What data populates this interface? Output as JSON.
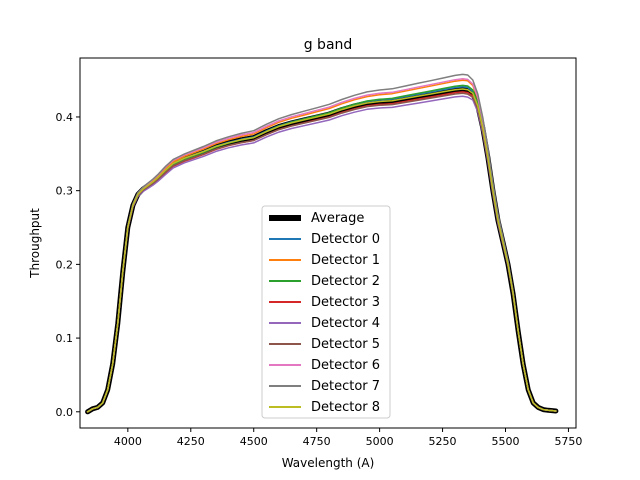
{
  "chart_data": {
    "type": "line",
    "title": "g band",
    "xlabel": "Wavelength (A)",
    "ylabel": "Throughput",
    "xlim": [
      3810,
      5780
    ],
    "ylim": [
      -0.022,
      0.48
    ],
    "xticks": [
      4000,
      4250,
      4500,
      4750,
      5000,
      5250,
      5500,
      5750
    ],
    "yticks": [
      0.0,
      0.1,
      0.2,
      0.3,
      0.4
    ],
    "ytick_labels": [
      "0.0",
      "0.1",
      "0.2",
      "0.3",
      "0.4"
    ],
    "grid": false,
    "legend": {
      "position": "lower center"
    },
    "x": [
      3840,
      3860,
      3880,
      3900,
      3920,
      3940,
      3960,
      3980,
      4000,
      4020,
      4040,
      4060,
      4080,
      4100,
      4120,
      4150,
      4180,
      4200,
      4225,
      4250,
      4300,
      4350,
      4400,
      4450,
      4500,
      4550,
      4600,
      4650,
      4700,
      4750,
      4800,
      4850,
      4900,
      4950,
      5000,
      5050,
      5100,
      5150,
      5200,
      5250,
      5300,
      5330,
      5350,
      5370,
      5390,
      5410,
      5430,
      5450,
      5470,
      5490,
      5510,
      5530,
      5550,
      5570,
      5590,
      5610,
      5630,
      5650,
      5670,
      5700
    ],
    "average": [
      0.0,
      0.004,
      0.006,
      0.012,
      0.03,
      0.065,
      0.12,
      0.19,
      0.25,
      0.28,
      0.295,
      0.302,
      0.307,
      0.312,
      0.318,
      0.328,
      0.337,
      0.34,
      0.344,
      0.347,
      0.353,
      0.36,
      0.365,
      0.369,
      0.372,
      0.38,
      0.387,
      0.392,
      0.396,
      0.4,
      0.404,
      0.41,
      0.415,
      0.419,
      0.421,
      0.422,
      0.425,
      0.428,
      0.431,
      0.434,
      0.437,
      0.438,
      0.437,
      0.432,
      0.415,
      0.385,
      0.345,
      0.3,
      0.26,
      0.23,
      0.2,
      0.16,
      0.11,
      0.065,
      0.03,
      0.012,
      0.006,
      0.003,
      0.002,
      0.001
    ],
    "series": [
      {
        "name": "Average",
        "color": "#000000",
        "lw": 5,
        "offset": [
          0,
          0
        ]
      },
      {
        "name": "Detector 0",
        "color": "#1f77b4",
        "lw": 1.5,
        "offset": [
          0.0,
          0.003
        ]
      },
      {
        "name": "Detector 1",
        "color": "#ff7f0e",
        "lw": 1.5,
        "offset": [
          0.002,
          0.012
        ]
      },
      {
        "name": "Detector 2",
        "color": "#2ca02c",
        "lw": 1.5,
        "offset": [
          -0.002,
          0.005
        ]
      },
      {
        "name": "Detector 3",
        "color": "#d62728",
        "lw": 1.5,
        "offset": [
          -0.004,
          -0.004
        ]
      },
      {
        "name": "Detector 4",
        "color": "#9467bd",
        "lw": 1.5,
        "offset": [
          -0.006,
          -0.01
        ]
      },
      {
        "name": "Detector 5",
        "color": "#8c564b",
        "lw": 1.5,
        "offset": [
          -0.003,
          -0.006
        ]
      },
      {
        "name": "Detector 6",
        "color": "#e377c2",
        "lw": 1.5,
        "offset": [
          0.004,
          0.014
        ]
      },
      {
        "name": "Detector 7",
        "color": "#7f7f7f",
        "lw": 1.5,
        "offset": [
          0.005,
          0.02
        ]
      },
      {
        "name": "Detector 8",
        "color": "#bcbd22",
        "lw": 1.5,
        "offset": [
          0.0,
          0.0
        ]
      }
    ]
  }
}
